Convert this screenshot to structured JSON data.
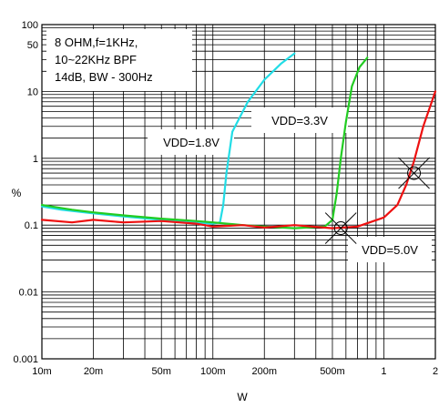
{
  "chart_data": {
    "type": "line",
    "title": "",
    "xlabel": "W",
    "ylabel": "%",
    "x_scale": "log",
    "y_scale": "log",
    "xlim": [
      0.01,
      2
    ],
    "ylim": [
      0.001,
      100
    ],
    "grid": true,
    "x_ticks": [
      {
        "v": 0.01,
        "label": "10m"
      },
      {
        "v": 0.02,
        "label": "20m"
      },
      {
        "v": 0.05,
        "label": "50m"
      },
      {
        "v": 0.1,
        "label": "100m"
      },
      {
        "v": 0.2,
        "label": "200m"
      },
      {
        "v": 0.5,
        "label": "500m"
      },
      {
        "v": 1,
        "label": "1"
      },
      {
        "v": 2,
        "label": "2"
      }
    ],
    "y_ticks": [
      {
        "v": 0.001,
        "label": "0.001"
      },
      {
        "v": 0.01,
        "label": "0.01"
      },
      {
        "v": 0.1,
        "label": "0.1"
      },
      {
        "v": 1,
        "label": "1"
      },
      {
        "v": 10,
        "label": "10"
      },
      {
        "v": 50,
        "label": "50"
      },
      {
        "v": 100,
        "label": "100"
      }
    ],
    "conditions": [
      "8 OHM,f=1KHz,",
      "10~22KHz BPF",
      "14dB, BW - 300Hz"
    ],
    "series": [
      {
        "name": "VDD=1.8V",
        "color": "#22dde6",
        "x": [
          0.01,
          0.013,
          0.02,
          0.03,
          0.05,
          0.08,
          0.1,
          0.11,
          0.115,
          0.12,
          0.13,
          0.16,
          0.2,
          0.25,
          0.3
        ],
        "y": [
          0.19,
          0.17,
          0.15,
          0.135,
          0.12,
          0.11,
          0.105,
          0.11,
          0.2,
          0.6,
          2.5,
          7,
          15,
          26,
          37
        ]
      },
      {
        "name": "VDD=3.3V",
        "color": "#22cc22",
        "x": [
          0.01,
          0.015,
          0.02,
          0.03,
          0.05,
          0.08,
          0.1,
          0.15,
          0.2,
          0.3,
          0.45,
          0.5,
          0.53,
          0.56,
          0.6,
          0.65,
          0.72,
          0.8
        ],
        "y": [
          0.2,
          0.17,
          0.155,
          0.14,
          0.125,
          0.115,
          0.11,
          0.1,
          0.095,
          0.09,
          0.095,
          0.12,
          0.3,
          1,
          3.5,
          12,
          23,
          32
        ]
      },
      {
        "name": "VDD=5.0V",
        "color": "#ee1111",
        "x": [
          0.01,
          0.015,
          0.02,
          0.03,
          0.05,
          0.08,
          0.1,
          0.15,
          0.2,
          0.3,
          0.5,
          0.7,
          1.0,
          1.2,
          1.35,
          1.5,
          1.7,
          2.0
        ],
        "y": [
          0.12,
          0.11,
          0.12,
          0.11,
          0.115,
          0.105,
          0.095,
          0.1,
          0.092,
          0.1,
          0.09,
          0.095,
          0.13,
          0.2,
          0.4,
          0.9,
          3,
          10
        ]
      }
    ],
    "markers": [
      {
        "name": "marker-3v3",
        "x": 0.56,
        "y": 0.09
      },
      {
        "name": "marker-5v0",
        "x": 1.5,
        "y": 0.6
      }
    ]
  }
}
